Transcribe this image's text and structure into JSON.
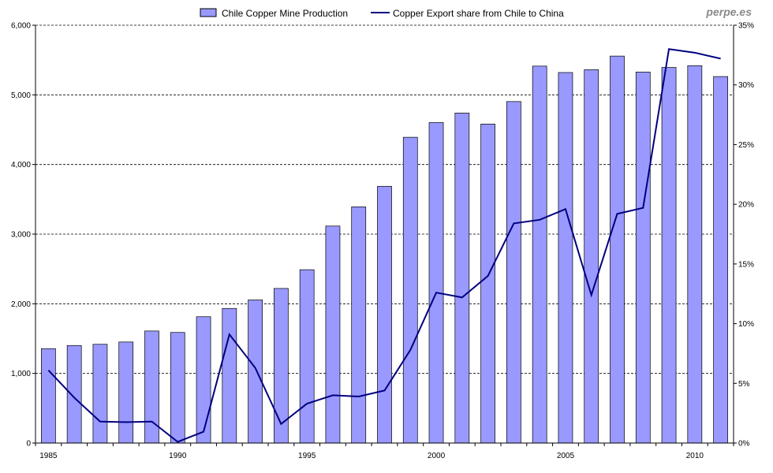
{
  "watermark": "perpe.es",
  "legend": {
    "bar_label": "Chile Copper Mine Production",
    "line_label": "Copper Export share from Chile to China"
  },
  "colors": {
    "bar_fill": "#9999ff",
    "bar_stroke": "#000000",
    "line": "#000080",
    "grid": "#000000"
  },
  "chart_data": {
    "type": "bar",
    "title": "",
    "xlabel": "",
    "ylabel": "",
    "x": [
      1985,
      1986,
      1987,
      1988,
      1989,
      1990,
      1991,
      1992,
      1993,
      1994,
      1995,
      1996,
      1997,
      1998,
      1999,
      2000,
      2001,
      2002,
      2003,
      2004,
      2005,
      2006,
      2007,
      2008,
      2009,
      2010,
      2011
    ],
    "x_tick_labels": [
      "1985",
      "1990",
      "1995",
      "2000",
      "2005",
      "2010"
    ],
    "x_tick_values": [
      1985,
      1990,
      1995,
      2000,
      2005,
      2010
    ],
    "y_left_ticks": [
      "0",
      "1,000",
      "2,000",
      "3,000",
      "4,000",
      "5,000",
      "6,000"
    ],
    "y_right_ticks": [
      "0%",
      "5%",
      "10%",
      "15%",
      "20%",
      "25%",
      "30%",
      "35%"
    ],
    "ylim_left": [
      0,
      6000
    ],
    "ylim_right": [
      0,
      35
    ],
    "grid": "horizontal dashed",
    "legend_position": "top",
    "series": [
      {
        "name": "Chile Copper Mine Production",
        "type": "bar",
        "axis": "left",
        "values": [
          1356,
          1401,
          1418,
          1451,
          1609,
          1588,
          1814,
          1933,
          2055,
          2220,
          2489,
          3116,
          3392,
          3687,
          4391,
          4602,
          4739,
          4581,
          4904,
          5413,
          5321,
          5361,
          5557,
          5328,
          5394,
          5419,
          5263
        ]
      },
      {
        "name": "Copper Export share from Chile to China",
        "type": "line",
        "axis": "right",
        "values": [
          6.1,
          3.8,
          1.8,
          1.75,
          1.8,
          0.1,
          0.95,
          9.1,
          6.3,
          1.6,
          3.3,
          4.0,
          3.9,
          4.4,
          7.8,
          12.6,
          12.2,
          14.0,
          18.4,
          18.7,
          19.6,
          12.4,
          19.2,
          19.7,
          33.0,
          32.7,
          32.2
        ]
      }
    ]
  }
}
